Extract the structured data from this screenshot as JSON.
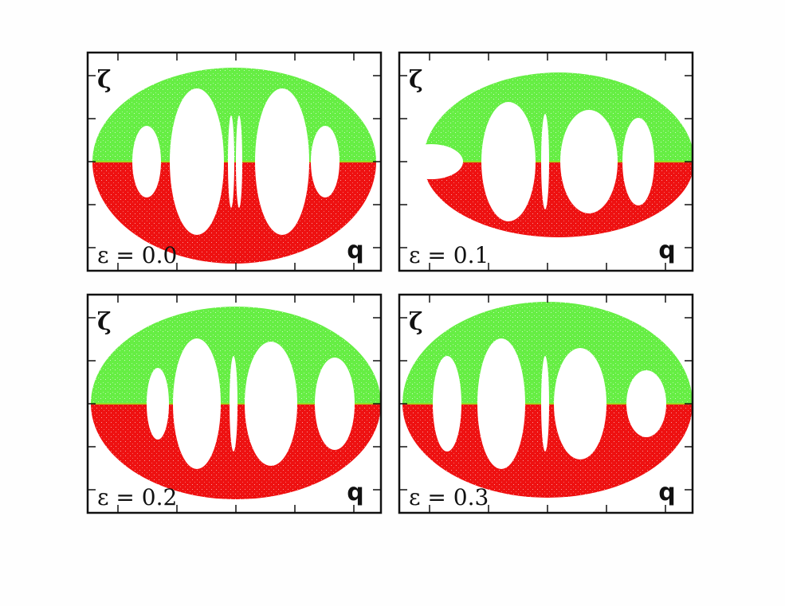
{
  "panels": [
    {
      "y_label": "ζ",
      "x_label": "q",
      "epsilon_label": "ε = 0.0"
    },
    {
      "y_label": "ζ",
      "x_label": "q",
      "epsilon_label": "ε = 0.1"
    },
    {
      "y_label": "ζ",
      "x_label": "q",
      "epsilon_label": "ε = 0.2"
    },
    {
      "y_label": "ζ",
      "x_label": "q",
      "epsilon_label": "ε = 0.3"
    }
  ]
}
